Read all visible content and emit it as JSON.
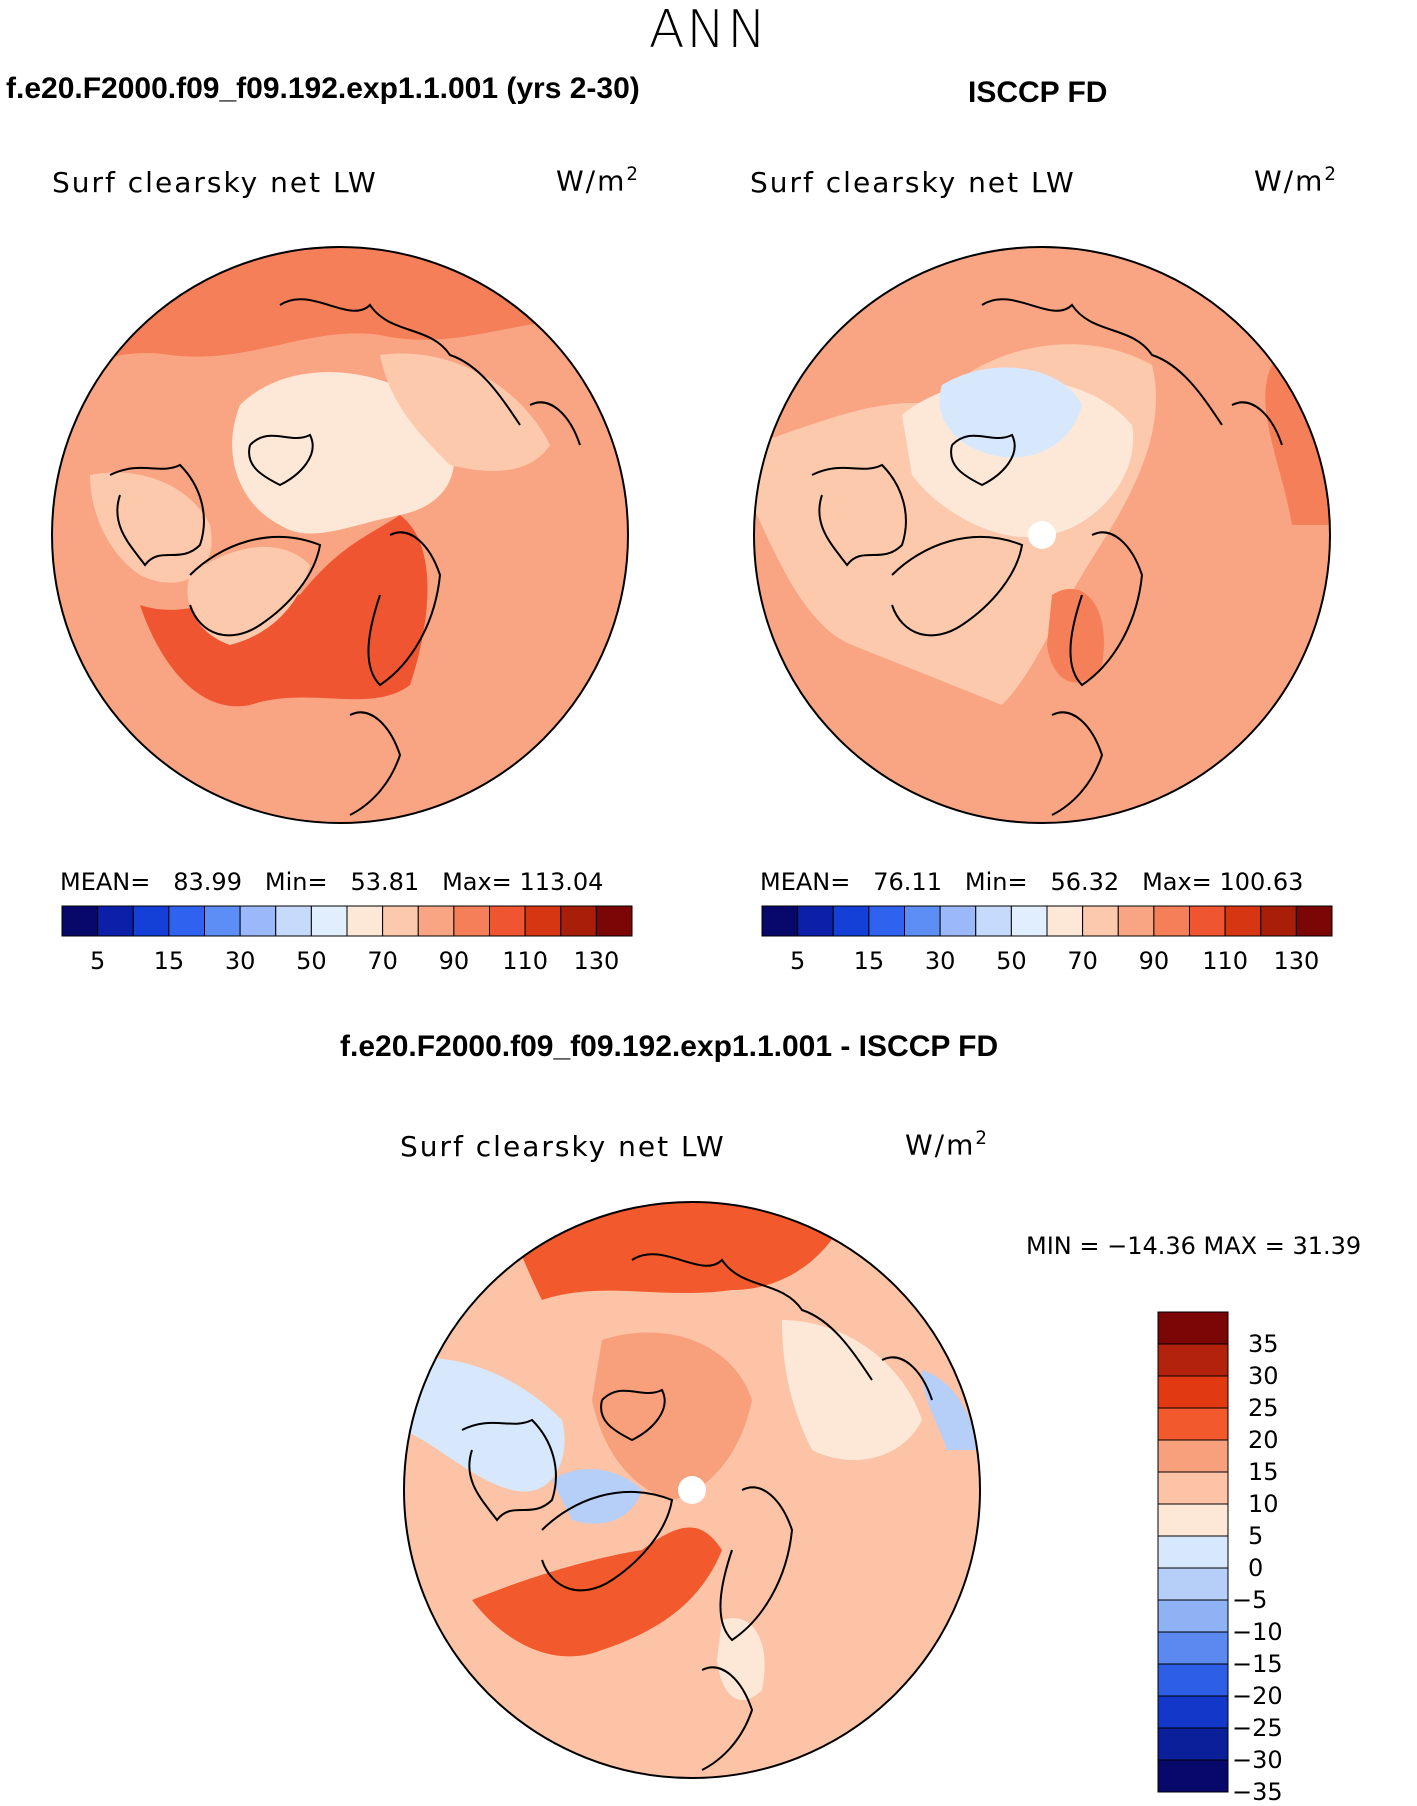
{
  "season": "ANN",
  "panels": {
    "model": {
      "title": "f.e20.F2000.f09_f09.192.exp1.1.001 (yrs 2-30)",
      "field": "Surf clearsky net LW",
      "units": "W/m",
      "units_exp": "2",
      "mean_label": "MEAN=",
      "mean": "83.99",
      "min_label": "Min=",
      "min": "53.81",
      "max_label": "Max=",
      "max": "113.04"
    },
    "obs": {
      "title": "ISCCP FD",
      "field": "Surf clearsky net LW",
      "units": "W/m",
      "units_exp": "2",
      "mean_label": "MEAN=",
      "mean": "76.11",
      "min_label": "Min=",
      "min": "56.32",
      "max_label": "Max=",
      "max": "100.63"
    },
    "diff": {
      "title": "f.e20.F2000.f09_f09.192.exp1.1.001 - ISCCP FD",
      "field": "Surf clearsky net LW",
      "units": "W/m",
      "units_exp": "2",
      "minmax": "MIN = −14.36  MAX =   31.39"
    }
  },
  "colorbar_main": {
    "colors": [
      "#08086b",
      "#0b1fa8",
      "#1540d8",
      "#2f62ee",
      "#5d8ef6",
      "#9ab8fa",
      "#c6dafc",
      "#e0eefe",
      "#fde8d8",
      "#fcc9ad",
      "#f9a583",
      "#f57f59",
      "#ee5530",
      "#d63712",
      "#a81e08",
      "#7a0606"
    ],
    "tick_labels": [
      "5",
      "15",
      "30",
      "50",
      "70",
      "90",
      "110",
      "130"
    ]
  },
  "colorbar_diff": {
    "colors": [
      "#7a0606",
      "#b3220c",
      "#e13a12",
      "#f2592c",
      "#f8a07c",
      "#fcc3a6",
      "#fde8d8",
      "#d8e8fc",
      "#b5cff9",
      "#8eb2f4",
      "#5c89ef",
      "#2d5ee6",
      "#1338c9",
      "#0b1f9a",
      "#08086b"
    ],
    "tick_labels": [
      "35",
      "30",
      "25",
      "20",
      "15",
      "10",
      "5",
      "0",
      "−5",
      "−10",
      "−15",
      "−20",
      "−25",
      "−30",
      "−35"
    ]
  }
}
